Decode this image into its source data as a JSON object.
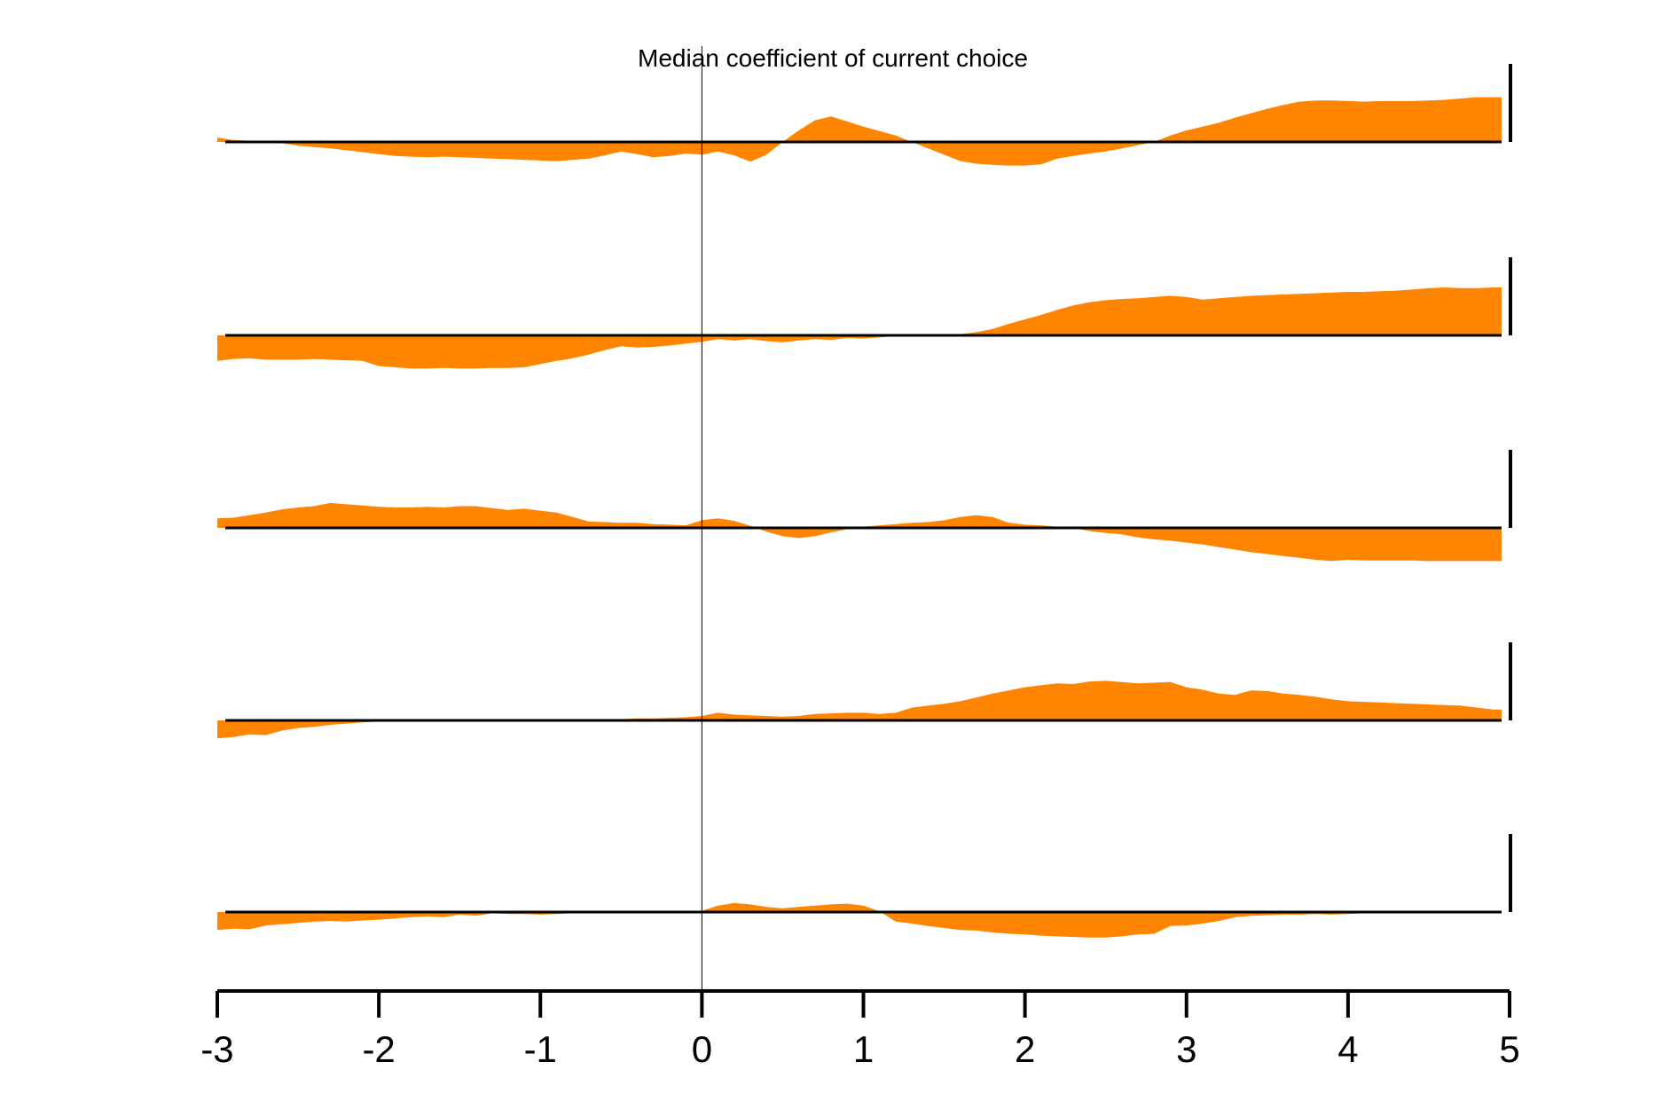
{
  "chart_data": {
    "type": "area",
    "title": "Median coefficient of current choice",
    "xlabel": "",
    "ylabel": "",
    "xlim": [
      -3,
      5
    ],
    "ylim": [
      -1,
      1
    ],
    "grid": false,
    "x_ticks": [
      -3,
      -2,
      -1,
      0,
      1,
      2,
      3,
      4,
      5
    ],
    "x_tick_labels": [
      "-3",
      "-2",
      "-1",
      "0",
      "1",
      "2",
      "3",
      "4",
      "5"
    ],
    "fill_color": "#FF8400",
    "axis_color": "#000000",
    "event_marker_x": 0,
    "x": [
      -3.0,
      -2.9,
      -2.8,
      -2.7,
      -2.6,
      -2.5,
      -2.4,
      -2.3,
      -2.2,
      -2.1,
      -2.0,
      -1.9,
      -1.8,
      -1.7,
      -1.6,
      -1.5,
      -1.4,
      -1.3,
      -1.2,
      -1.1,
      -1.0,
      -0.9,
      -0.8,
      -0.7,
      -0.6,
      -0.5,
      -0.4,
      -0.3,
      -0.2,
      -0.1,
      0.0,
      0.1,
      0.2,
      0.3,
      0.4,
      0.5,
      0.6,
      0.7,
      0.8,
      0.9,
      1.0,
      1.1,
      1.2,
      1.3,
      1.4,
      1.5,
      1.6,
      1.7,
      1.8,
      1.9,
      2.0,
      2.1,
      2.2,
      2.3,
      2.4,
      2.5,
      2.6,
      2.7,
      2.8,
      2.9,
      3.0,
      3.1,
      3.2,
      3.3,
      3.4,
      3.5,
      3.6,
      3.7,
      3.8,
      3.9,
      4.0,
      4.1,
      4.2,
      4.3,
      4.4,
      4.5,
      4.6,
      4.7,
      4.8,
      4.9
    ],
    "series": [
      {
        "values": [
          0.07,
          0.03,
          0.02,
          0.01,
          -0.02,
          -0.06,
          -0.08,
          -0.1,
          -0.13,
          -0.16,
          -0.19,
          -0.22,
          -0.23,
          -0.24,
          -0.23,
          -0.24,
          -0.25,
          -0.26,
          -0.27,
          -0.28,
          -0.29,
          -0.3,
          -0.28,
          -0.26,
          -0.21,
          -0.15,
          -0.19,
          -0.24,
          -0.22,
          -0.18,
          -0.2,
          -0.15,
          -0.21,
          -0.31,
          -0.2,
          0.0,
          0.18,
          0.34,
          0.4,
          0.32,
          0.24,
          0.17,
          0.1,
          0.0,
          -0.1,
          -0.2,
          -0.3,
          -0.34,
          -0.36,
          -0.37,
          -0.37,
          -0.35,
          -0.26,
          -0.22,
          -0.18,
          -0.15,
          -0.1,
          -0.05,
          0.0,
          0.1,
          0.18,
          0.24,
          0.3,
          0.38,
          0.45,
          0.52,
          0.58,
          0.63,
          0.65,
          0.65,
          0.64,
          0.63,
          0.64,
          0.64,
          0.64,
          0.65,
          0.66,
          0.68,
          0.7,
          0.7
        ]
      },
      {
        "values": [
          -0.4,
          -0.37,
          -0.36,
          -0.38,
          -0.38,
          -0.38,
          -0.37,
          -0.38,
          -0.39,
          -0.4,
          -0.48,
          -0.5,
          -0.52,
          -0.52,
          -0.51,
          -0.52,
          -0.52,
          -0.51,
          -0.51,
          -0.5,
          -0.45,
          -0.4,
          -0.36,
          -0.3,
          -0.23,
          -0.17,
          -0.19,
          -0.18,
          -0.16,
          -0.13,
          -0.1,
          -0.06,
          -0.08,
          -0.06,
          -0.09,
          -0.11,
          -0.08,
          -0.06,
          -0.07,
          -0.04,
          -0.05,
          -0.03,
          -0.01,
          0.0,
          0.0,
          0.0,
          0.02,
          0.05,
          0.1,
          0.18,
          0.25,
          0.32,
          0.4,
          0.47,
          0.52,
          0.55,
          0.57,
          0.58,
          0.6,
          0.62,
          0.6,
          0.56,
          0.58,
          0.6,
          0.62,
          0.63,
          0.64,
          0.65,
          0.66,
          0.67,
          0.68,
          0.68,
          0.69,
          0.7,
          0.72,
          0.74,
          0.75,
          0.74,
          0.74,
          0.75
        ]
      },
      {
        "values": [
          0.15,
          0.16,
          0.2,
          0.24,
          0.29,
          0.32,
          0.34,
          0.39,
          0.37,
          0.35,
          0.33,
          0.32,
          0.32,
          0.33,
          0.32,
          0.34,
          0.34,
          0.31,
          0.28,
          0.3,
          0.27,
          0.24,
          0.17,
          0.1,
          0.09,
          0.08,
          0.08,
          0.06,
          0.05,
          0.04,
          0.12,
          0.15,
          0.11,
          0.03,
          -0.06,
          -0.13,
          -0.16,
          -0.13,
          -0.07,
          -0.02,
          0.02,
          0.04,
          0.06,
          0.08,
          0.09,
          0.12,
          0.17,
          0.2,
          0.17,
          0.08,
          0.05,
          0.04,
          0.02,
          0.0,
          -0.05,
          -0.08,
          -0.1,
          -0.15,
          -0.18,
          -0.2,
          -0.23,
          -0.26,
          -0.3,
          -0.34,
          -0.38,
          -0.41,
          -0.44,
          -0.47,
          -0.5,
          -0.52,
          -0.5,
          -0.51,
          -0.51,
          -0.51,
          -0.51,
          -0.52,
          -0.52,
          -0.52,
          -0.52,
          -0.52
        ]
      },
      {
        "values": [
          -0.28,
          -0.26,
          -0.22,
          -0.23,
          -0.16,
          -0.12,
          -0.1,
          -0.07,
          -0.05,
          -0.03,
          -0.02,
          -0.01,
          0.0,
          0.0,
          0.0,
          0.0,
          0.0,
          0.01,
          0.01,
          0.01,
          0.02,
          0.02,
          0.01,
          0.0,
          0.01,
          0.02,
          0.03,
          0.03,
          0.04,
          0.05,
          0.07,
          0.12,
          0.09,
          0.08,
          0.07,
          0.06,
          0.07,
          0.1,
          0.11,
          0.12,
          0.12,
          0.1,
          0.12,
          0.2,
          0.23,
          0.26,
          0.3,
          0.36,
          0.42,
          0.47,
          0.52,
          0.55,
          0.58,
          0.57,
          0.61,
          0.62,
          0.6,
          0.58,
          0.59,
          0.6,
          0.52,
          0.48,
          0.42,
          0.4,
          0.47,
          0.46,
          0.42,
          0.4,
          0.37,
          0.33,
          0.3,
          0.29,
          0.28,
          0.27,
          0.26,
          0.25,
          0.24,
          0.23,
          0.2,
          0.17
        ]
      },
      {
        "values": [
          -0.28,
          -0.26,
          -0.27,
          -0.21,
          -0.19,
          -0.17,
          -0.15,
          -0.14,
          -0.15,
          -0.13,
          -0.12,
          -0.1,
          -0.08,
          -0.07,
          -0.08,
          -0.04,
          -0.06,
          -0.02,
          -0.03,
          -0.03,
          -0.04,
          -0.03,
          -0.02,
          -0.01,
          0.0,
          0.0,
          0.0,
          0.0,
          0.0,
          0.0,
          0.02,
          0.1,
          0.14,
          0.12,
          0.08,
          0.06,
          0.08,
          0.1,
          0.12,
          0.13,
          0.1,
          0.01,
          -0.15,
          -0.18,
          -0.22,
          -0.25,
          -0.28,
          -0.29,
          -0.32,
          -0.34,
          -0.35,
          -0.37,
          -0.38,
          -0.39,
          -0.4,
          -0.4,
          -0.38,
          -0.35,
          -0.34,
          -0.22,
          -0.21,
          -0.18,
          -0.14,
          -0.08,
          -0.06,
          -0.05,
          -0.04,
          -0.04,
          -0.03,
          -0.04,
          -0.03,
          -0.02,
          -0.02,
          -0.01,
          -0.01,
          0.0,
          0.0,
          0.0,
          0.0,
          0.0
        ]
      }
    ]
  }
}
